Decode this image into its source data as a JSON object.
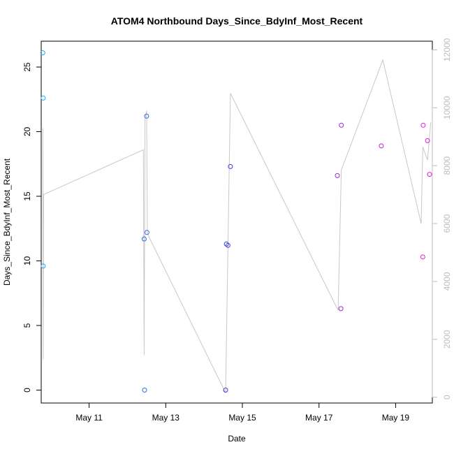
{
  "chart_data": {
    "type": "scatter",
    "title": "ATOM4 Northbound Days_Since_BdyInf_Most_Recent",
    "xlabel": "Date",
    "ylabel": "Days_Since_BdyInf_Most_Recent",
    "x_axis": {
      "type": "date",
      "range": [
        "2023-05-09 18:00",
        "2023-05-19 23:00"
      ],
      "ticks": [
        {
          "value": "2023-05-11",
          "label": "May 11"
        },
        {
          "value": "2023-05-13",
          "label": "May 13"
        },
        {
          "value": "2023-05-15",
          "label": "May 15"
        },
        {
          "value": "2023-05-17",
          "label": "May 17"
        },
        {
          "value": "2023-05-19",
          "label": "May 19"
        }
      ]
    },
    "y_axis_left": {
      "range": [
        -1,
        27
      ],
      "ticks": [
        0,
        5,
        10,
        15,
        20,
        25
      ]
    },
    "y_axis_right": {
      "range": [
        -200,
        12300
      ],
      "ticks": [
        0,
        2000,
        4000,
        6000,
        8000,
        10000,
        12000
      ],
      "color": "#bdbdbd"
    },
    "grid": false,
    "series": [
      {
        "kind": "points",
        "axis": "left",
        "marker": "open-circle",
        "points": [
          {
            "x": "2023-05-09 19:00",
            "y": 26.1,
            "color": "#1eaaf0"
          },
          {
            "x": "2023-05-09 19:15",
            "y": 22.6,
            "color": "#1eaaf0"
          },
          {
            "x": "2023-05-09 19:15",
            "y": 9.6,
            "color": "#1eaaf0"
          },
          {
            "x": "2023-05-12 10:30",
            "y": 11.7,
            "color": "#2f6be8"
          },
          {
            "x": "2023-05-12 10:45",
            "y": 0.0,
            "color": "#2f6be8"
          },
          {
            "x": "2023-05-12 12:00",
            "y": 21.2,
            "color": "#2f6be8"
          },
          {
            "x": "2023-05-12 12:15",
            "y": 12.2,
            "color": "#2f6be8"
          },
          {
            "x": "2023-05-14 13:30",
            "y": 0.0,
            "color": "#3c3ce0"
          },
          {
            "x": "2023-05-14 14:00",
            "y": 11.3,
            "color": "#3c3ce0"
          },
          {
            "x": "2023-05-14 15:00",
            "y": 11.2,
            "color": "#3c3ce0"
          },
          {
            "x": "2023-05-14 16:30",
            "y": 17.3,
            "color": "#3c3ce0"
          },
          {
            "x": "2023-05-17 11:30",
            "y": 16.6,
            "color": "#a022e0"
          },
          {
            "x": "2023-05-17 13:45",
            "y": 6.3,
            "color": "#a022e0"
          },
          {
            "x": "2023-05-17 14:00",
            "y": 20.5,
            "color": "#a022e0"
          },
          {
            "x": "2023-05-18 15:00",
            "y": 18.9,
            "color": "#c81edc"
          },
          {
            "x": "2023-05-19 17:00",
            "y": 10.3,
            "color": "#e01ed8"
          },
          {
            "x": "2023-05-19 17:15",
            "y": 20.5,
            "color": "#e01ed8"
          },
          {
            "x": "2023-05-19 20:00",
            "y": 19.3,
            "color": "#e01ed8"
          },
          {
            "x": "2023-05-19 21:15",
            "y": 16.7,
            "color": "#e01ed8"
          }
        ]
      },
      {
        "kind": "line",
        "axis": "right",
        "color": "#c8c8c8",
        "points": [
          {
            "x": "2023-05-09 19:00",
            "y": 9300
          },
          {
            "x": "2023-05-09 19:15",
            "y": 1300
          },
          {
            "x": "2023-05-09 19:30",
            "y": 7000
          },
          {
            "x": "2023-05-12 10:00",
            "y": 8550
          },
          {
            "x": "2023-05-12 10:30",
            "y": 1450
          },
          {
            "x": "2023-05-12 11:00",
            "y": 9600
          },
          {
            "x": "2023-05-12 12:00",
            "y": 9900
          },
          {
            "x": "2023-05-12 12:30",
            "y": 5650
          },
          {
            "x": "2023-05-14 13:30",
            "y": 150
          },
          {
            "x": "2023-05-14 16:30",
            "y": 10500
          },
          {
            "x": "2023-05-17 12:00",
            "y": 3000
          },
          {
            "x": "2023-05-17 14:00",
            "y": 7850
          },
          {
            "x": "2023-05-18 16:00",
            "y": 11650
          },
          {
            "x": "2023-05-19 16:00",
            "y": 6000
          },
          {
            "x": "2023-05-19 17:00",
            "y": 8650
          },
          {
            "x": "2023-05-19 20:00",
            "y": 8200
          },
          {
            "x": "2023-05-19 22:00",
            "y": 9500
          }
        ]
      }
    ]
  }
}
